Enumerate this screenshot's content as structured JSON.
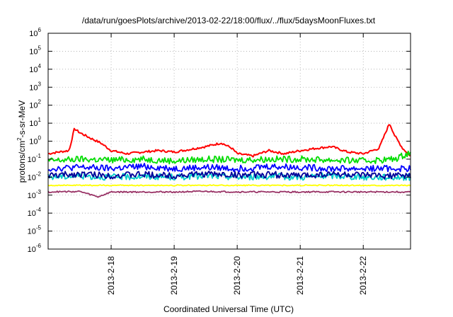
{
  "chart_data": {
    "type": "line",
    "title": "/data/run/goesPlots/archive/2013-02-22/18:00/flux/../flux/5daysMoonFluxes.txt",
    "xlabel": "Coordinated Universal Time (UTC)",
    "ylabel": {
      "base": "protons/cm",
      "sup": "2",
      "rest": "-s-sr-MeV"
    },
    "x_range": [
      "2013-02-17T00:00",
      "2013-02-22T18:00"
    ],
    "x_ticks": [
      "2013-2-18",
      "2013-2-19",
      "2013-2-20",
      "2013-2-21",
      "2013-2-22"
    ],
    "y_scale": "log",
    "ylim": [
      1e-06,
      1000000.0
    ],
    "y_ticks": [
      {
        "base": "10",
        "exp": "-6",
        "value": 1e-06
      },
      {
        "base": "10",
        "exp": "-5",
        "value": 1e-05
      },
      {
        "base": "10",
        "exp": "-4",
        "value": 0.0001
      },
      {
        "base": "10",
        "exp": "-3",
        "value": 0.001
      },
      {
        "base": "10",
        "exp": "-2",
        "value": 0.01
      },
      {
        "base": "10",
        "exp": "-1",
        "value": 0.1
      },
      {
        "base": "10",
        "exp": "0",
        "value": 1
      },
      {
        "base": "10",
        "exp": "1",
        "value": 10
      },
      {
        "base": "10",
        "exp": "2",
        "value": 100
      },
      {
        "base": "10",
        "exp": "3",
        "value": 1000
      },
      {
        "base": "10",
        "exp": "4",
        "value": 10000
      },
      {
        "base": "10",
        "exp": "5",
        "value": 100000
      },
      {
        "base": "10",
        "exp": "6",
        "value": 1000000
      }
    ],
    "grid": true,
    "series": [
      {
        "color": "#ff0000",
        "points": [
          [
            "2013-02-17T00:00",
            0.2
          ],
          [
            "2013-02-17T04:00",
            0.25
          ],
          [
            "2013-02-17T08:00",
            0.3
          ],
          [
            "2013-02-17T10:00",
            5.0
          ],
          [
            "2013-02-17T12:00",
            3.0
          ],
          [
            "2013-02-17T16:00",
            1.5
          ],
          [
            "2013-02-17T20:00",
            0.8
          ],
          [
            "2013-02-18T00:00",
            0.3
          ],
          [
            "2013-02-18T06:00",
            0.2
          ],
          [
            "2013-02-18T12:00",
            0.25
          ],
          [
            "2013-02-18T18:00",
            0.3
          ],
          [
            "2013-02-19T00:00",
            0.25
          ],
          [
            "2013-02-19T06:00",
            0.35
          ],
          [
            "2013-02-19T12:00",
            0.5
          ],
          [
            "2013-02-19T18:00",
            0.8
          ],
          [
            "2013-02-19T22:00",
            0.4
          ],
          [
            "2013-02-20T00:00",
            0.2
          ],
          [
            "2013-02-20T06:00",
            0.15
          ],
          [
            "2013-02-20T12:00",
            0.3
          ],
          [
            "2013-02-20T18:00",
            0.2
          ],
          [
            "2013-02-21T00:00",
            0.3
          ],
          [
            "2013-02-21T06:00",
            0.4
          ],
          [
            "2013-02-21T12:00",
            0.5
          ],
          [
            "2013-02-21T18:00",
            0.25
          ],
          [
            "2013-02-22T00:00",
            0.2
          ],
          [
            "2013-02-22T06:00",
            0.4
          ],
          [
            "2013-02-22T10:00",
            10.0
          ],
          [
            "2013-02-22T12:00",
            2.0
          ],
          [
            "2013-02-22T15:00",
            0.4
          ],
          [
            "2013-02-22T18:00",
            0.15
          ]
        ]
      },
      {
        "color": "#00dd00",
        "points": [
          [
            "2013-02-17T00:00",
            0.08
          ],
          [
            "2013-02-17T12:00",
            0.1
          ],
          [
            "2013-02-18T00:00",
            0.09
          ],
          [
            "2013-02-18T12:00",
            0.1
          ],
          [
            "2013-02-19T00:00",
            0.08
          ],
          [
            "2013-02-19T12:00",
            0.1
          ],
          [
            "2013-02-20T00:00",
            0.09
          ],
          [
            "2013-02-20T12:00",
            0.1
          ],
          [
            "2013-02-21T00:00",
            0.1
          ],
          [
            "2013-02-21T12:00",
            0.09
          ],
          [
            "2013-02-22T00:00",
            0.08
          ],
          [
            "2013-02-22T12:00",
            0.1
          ],
          [
            "2013-02-22T18:00",
            0.25
          ]
        ]
      },
      {
        "color": "#00cccc",
        "points": [
          [
            "2013-02-17T00:00",
            0.01
          ],
          [
            "2013-02-17T12:00",
            0.012
          ],
          [
            "2013-02-18T00:00",
            0.01
          ],
          [
            "2013-02-18T12:00",
            0.011
          ],
          [
            "2013-02-19T00:00",
            0.01
          ],
          [
            "2013-02-19T12:00",
            0.012
          ],
          [
            "2013-02-20T00:00",
            0.01
          ],
          [
            "2013-02-20T12:00",
            0.011
          ],
          [
            "2013-02-21T00:00",
            0.01
          ],
          [
            "2013-02-21T12:00",
            0.012
          ],
          [
            "2013-02-22T00:00",
            0.01
          ],
          [
            "2013-02-22T18:00",
            0.01
          ]
        ]
      },
      {
        "color": "#0000ff",
        "points": [
          [
            "2013-02-17T00:00",
            0.03
          ],
          [
            "2013-02-17T12:00",
            0.035
          ],
          [
            "2013-02-18T00:00",
            0.03
          ],
          [
            "2013-02-18T12:00",
            0.04
          ],
          [
            "2013-02-19T00:00",
            0.03
          ],
          [
            "2013-02-19T12:00",
            0.035
          ],
          [
            "2013-02-20T00:00",
            0.03
          ],
          [
            "2013-02-20T12:00",
            0.04
          ],
          [
            "2013-02-21T00:00",
            0.035
          ],
          [
            "2013-02-21T12:00",
            0.03
          ],
          [
            "2013-02-22T00:00",
            0.03
          ],
          [
            "2013-02-22T18:00",
            0.03
          ]
        ]
      },
      {
        "color": "#000099",
        "points": [
          [
            "2013-02-17T00:00",
            0.012
          ],
          [
            "2013-02-17T12:00",
            0.015
          ],
          [
            "2013-02-18T00:00",
            0.012
          ],
          [
            "2013-02-18T12:00",
            0.014
          ],
          [
            "2013-02-19T00:00",
            0.012
          ],
          [
            "2013-02-19T12:00",
            0.015
          ],
          [
            "2013-02-20T00:00",
            0.013
          ],
          [
            "2013-02-20T12:00",
            0.014
          ],
          [
            "2013-02-21T00:00",
            0.012
          ],
          [
            "2013-02-21T12:00",
            0.015
          ],
          [
            "2013-02-22T00:00",
            0.012
          ],
          [
            "2013-02-22T18:00",
            0.012
          ]
        ]
      },
      {
        "color": "#ffff00",
        "points": [
          [
            "2013-02-17T00:00",
            0.0035
          ],
          [
            "2013-02-17T12:00",
            0.0035
          ],
          [
            "2013-02-18T00:00",
            0.0035
          ],
          [
            "2013-02-18T12:00",
            0.0035
          ],
          [
            "2013-02-19T00:00",
            0.0035
          ],
          [
            "2013-02-19T12:00",
            0.0035
          ],
          [
            "2013-02-20T00:00",
            0.0035
          ],
          [
            "2013-02-20T12:00",
            0.0035
          ],
          [
            "2013-02-21T00:00",
            0.0035
          ],
          [
            "2013-02-21T12:00",
            0.0035
          ],
          [
            "2013-02-22T00:00",
            0.0035
          ],
          [
            "2013-02-22T18:00",
            0.0035
          ]
        ]
      },
      {
        "color": "#993366",
        "points": [
          [
            "2013-02-17T00:00",
            0.0015
          ],
          [
            "2013-02-17T12:00",
            0.0016
          ],
          [
            "2013-02-17T19:00",
            0.0008
          ],
          [
            "2013-02-18T00:00",
            0.0015
          ],
          [
            "2013-02-18T12:00",
            0.0015
          ],
          [
            "2013-02-19T00:00",
            0.0015
          ],
          [
            "2013-02-19T12:00",
            0.0016
          ],
          [
            "2013-02-20T00:00",
            0.0015
          ],
          [
            "2013-02-20T12:00",
            0.0015
          ],
          [
            "2013-02-21T00:00",
            0.0015
          ],
          [
            "2013-02-21T12:00",
            0.0015
          ],
          [
            "2013-02-22T00:00",
            0.0015
          ],
          [
            "2013-02-22T18:00",
            0.0015
          ]
        ]
      }
    ]
  }
}
